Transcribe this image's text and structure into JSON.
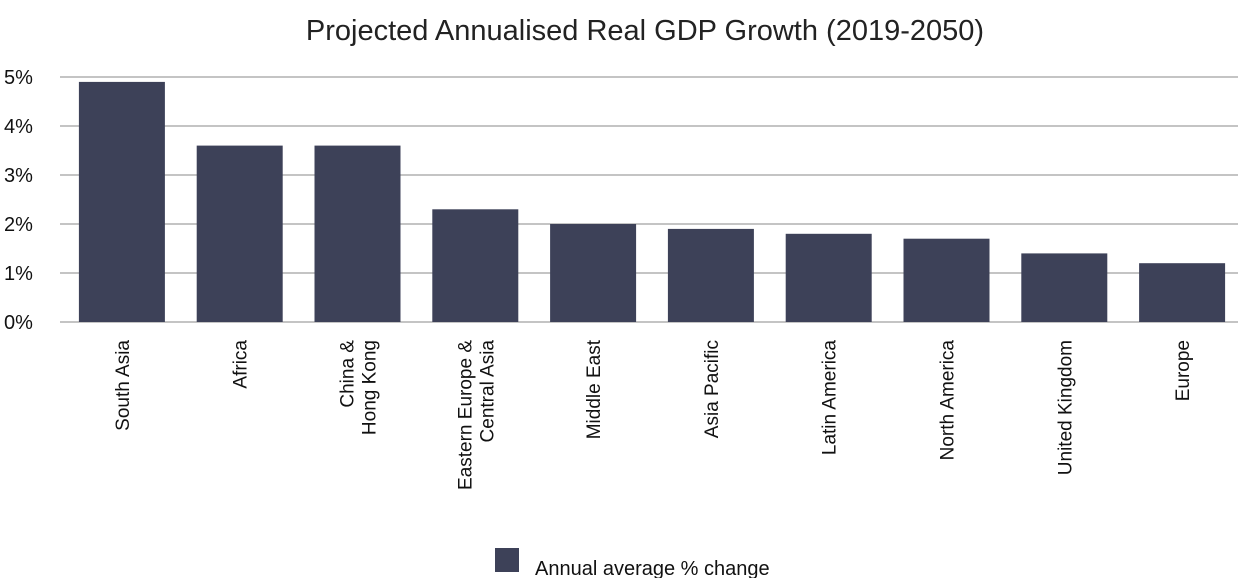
{
  "chart_data": {
    "type": "bar",
    "title": "Projected Annualised Real GDP Growth (2019-2050)",
    "xlabel": "",
    "ylabel": "",
    "categories": [
      [
        "South Asia"
      ],
      [
        "Africa"
      ],
      [
        "China &",
        "Hong Kong"
      ],
      [
        "Eastern Europe &",
        "Central Asia"
      ],
      [
        "Middle East"
      ],
      [
        "Asia Pacific"
      ],
      [
        "Latin America"
      ],
      [
        "North America"
      ],
      [
        "United Kingdom"
      ],
      [
        "Europe"
      ]
    ],
    "series": [
      {
        "name": "Annual average % change",
        "color": "#3d4158",
        "values": [
          4.9,
          3.6,
          3.6,
          2.3,
          2.0,
          1.9,
          1.8,
          1.7,
          1.4,
          1.2
        ]
      }
    ],
    "ylim": [
      0,
      5
    ],
    "yticks": [
      0,
      1,
      2,
      3,
      4,
      5
    ],
    "ytick_labels": [
      "0%",
      "1%",
      "2%",
      "3%",
      "4%",
      "5%"
    ],
    "grid": true,
    "legend_position": "bottom"
  }
}
